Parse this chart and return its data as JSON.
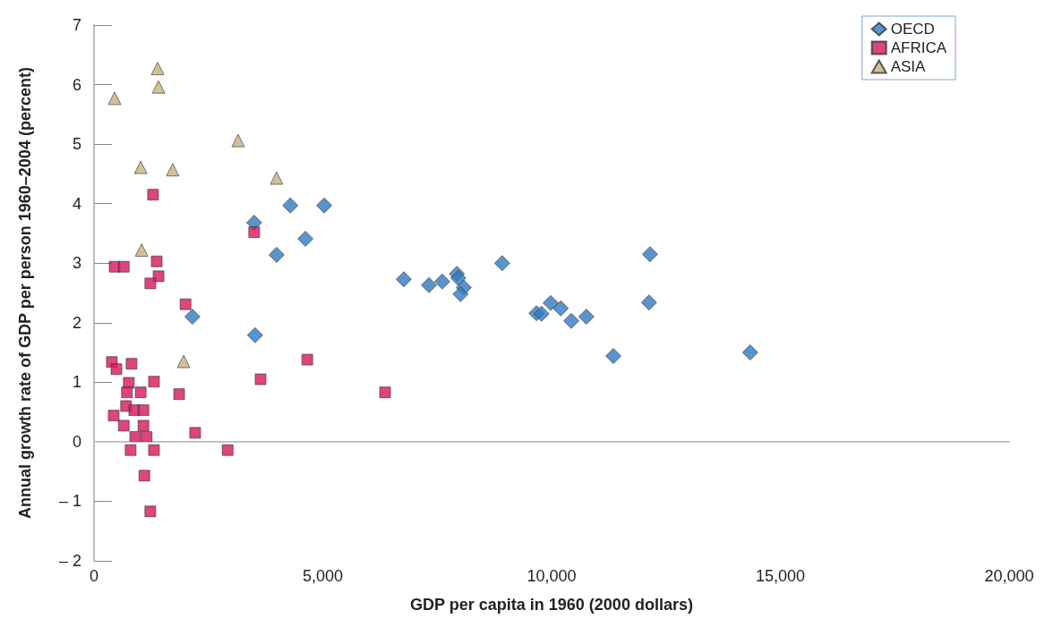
{
  "chart_data": {
    "type": "scatter",
    "xlabel": "GDP per capita in 1960 (2000 dollars)",
    "ylabel": "Annual growth rate of GDP per person 1960–2004 (percent)",
    "xlim": [
      0,
      20000
    ],
    "xticks": [
      {
        "value": 0,
        "label": "0"
      },
      {
        "value": 5000,
        "label": "5,000"
      },
      {
        "value": 10000,
        "label": "10,000"
      },
      {
        "value": 15000,
        "label": "15,000"
      },
      {
        "value": 20000,
        "label": "20,000"
      }
    ],
    "ylim": [
      -2,
      7
    ],
    "yticks": [
      {
        "value": -2,
        "label": "– 2"
      },
      {
        "value": -1,
        "label": "– 1"
      },
      0,
      1,
      2,
      3,
      4,
      5,
      6,
      7
    ],
    "grid": false,
    "legend": "top right",
    "ref_lines": [
      {
        "axis": "y",
        "value": 0,
        "color": "#cccccc",
        "line_style": "solid"
      }
    ],
    "series": [
      {
        "name": "OECD",
        "color": "#2f7bbf",
        "marker": "diamond",
        "x": [
          3500,
          4290,
          5030,
          3990,
          4620,
          2150,
          3520,
          6770,
          7320,
          7610,
          7930,
          7960,
          8080,
          8010,
          8920,
          9670,
          9780,
          9980,
          10200,
          10430,
          10760,
          11350,
          12150,
          12130,
          14340
        ],
        "values": [
          3.68,
          3.97,
          3.97,
          3.14,
          3.41,
          2.1,
          1.79,
          2.73,
          2.63,
          2.69,
          2.82,
          2.75,
          2.59,
          2.48,
          3.0,
          2.16,
          2.15,
          2.33,
          2.24,
          2.03,
          2.1,
          1.44,
          3.15,
          2.34,
          1.5
        ]
      },
      {
        "name": "AFRICA",
        "color": "#d6165e",
        "marker": "square",
        "x": [
          1290,
          3500,
          450,
          650,
          1370,
          1410,
          1230,
          2000,
          390,
          490,
          820,
          4660,
          3640,
          1860,
          760,
          720,
          1020,
          1310,
          700,
          880,
          1080,
          430,
          650,
          1080,
          900,
          1150,
          2210,
          800,
          1310,
          2920,
          1100,
          1230,
          6360
        ],
        "values": [
          4.15,
          3.52,
          2.94,
          2.94,
          3.03,
          2.78,
          2.66,
          2.31,
          1.34,
          1.22,
          1.31,
          1.38,
          1.05,
          0.8,
          0.99,
          0.83,
          0.83,
          1.01,
          0.6,
          0.53,
          0.53,
          0.44,
          0.27,
          0.27,
          0.08,
          0.08,
          0.15,
          -0.14,
          -0.14,
          -0.14,
          -0.57,
          -1.17,
          0.83
        ]
      },
      {
        "name": "ASIA",
        "color": "#c8b07f",
        "marker": "triangle",
        "x": [
          450,
          1390,
          1410,
          3150,
          1020,
          1720,
          3990,
          1040,
          1960
        ],
        "values": [
          5.77,
          6.27,
          5.96,
          5.06,
          4.61,
          4.57,
          4.43,
          3.22,
          1.35
        ]
      }
    ]
  }
}
